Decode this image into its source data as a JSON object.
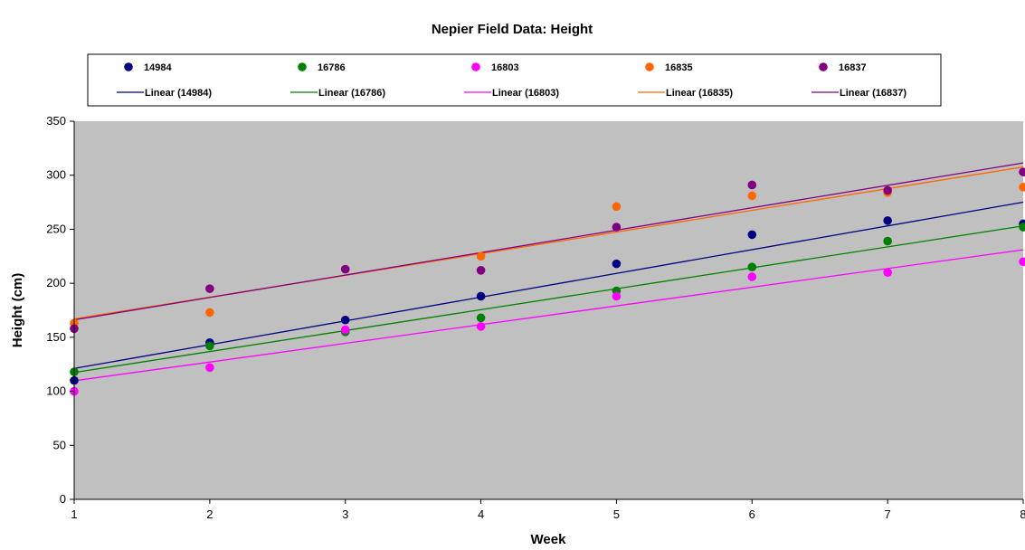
{
  "chart_data": {
    "type": "scatter",
    "title": "Nepier Field Data: Height",
    "xlabel": "Week",
    "ylabel": "Height (cm)",
    "xlim": [
      1,
      8
    ],
    "ylim": [
      0,
      350
    ],
    "x_ticks": [
      "1",
      "2",
      "3",
      "4",
      "5",
      "6",
      "7",
      "8"
    ],
    "y_ticks": [
      "0",
      "50",
      "100",
      "150",
      "200",
      "250",
      "300",
      "350"
    ],
    "grid": false,
    "plot_background": "#c0c0c0",
    "legend_position": "top",
    "x": [
      1,
      2,
      3,
      4,
      5,
      6,
      7,
      8
    ],
    "series": [
      {
        "name": "14984",
        "trend_label": "Linear (14984)",
        "color": "#000080",
        "values": [
          110,
          145,
          166,
          188,
          218,
          245,
          258,
          255
        ]
      },
      {
        "name": "16786",
        "trend_label": "Linear (16786)",
        "color": "#008000",
        "values": [
          118,
          142,
          155,
          168,
          193,
          215,
          239,
          252
        ]
      },
      {
        "name": "16803",
        "trend_label": "Linear (16803)",
        "color": "#ff00ff",
        "values": [
          100,
          122,
          157,
          160,
          188,
          206,
          210,
          220
        ]
      },
      {
        "name": "16835",
        "trend_label": "Linear (16835)",
        "color": "#ff6600",
        "values": [
          163,
          173,
          213,
          225,
          271,
          281,
          284,
          289
        ]
      },
      {
        "name": "16837",
        "trend_label": "Linear (16837)",
        "color": "#800080",
        "values": [
          158,
          195,
          213,
          212,
          252,
          291,
          286,
          303
        ]
      }
    ]
  }
}
